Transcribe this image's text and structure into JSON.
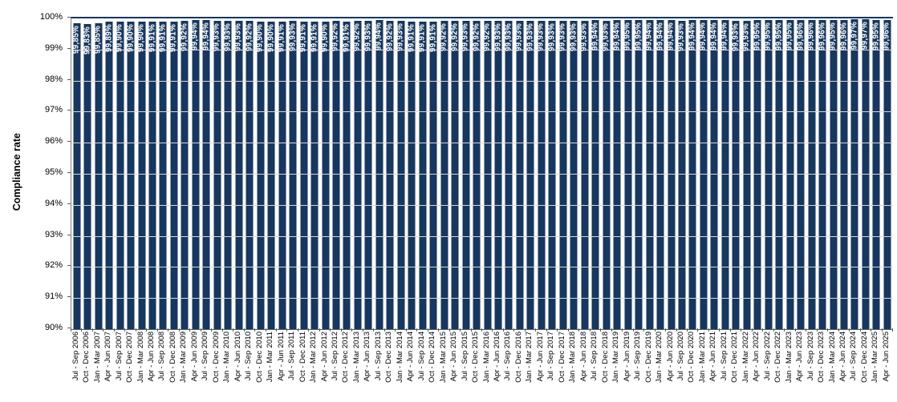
{
  "chart_data": {
    "type": "bar",
    "title": "",
    "xlabel": "",
    "ylabel": "Compliance rate",
    "ylim": [
      90,
      100
    ],
    "ytick_step": 1,
    "ytick_labels": [
      "100%",
      "99%",
      "98%",
      "97%",
      "96%",
      "95%",
      "94%",
      "93%",
      "92%",
      "91%",
      "90%"
    ],
    "grid": true,
    "legend": "none",
    "bar_color": "#17375E",
    "value_label_color": "#FFFFFF",
    "gridline_color": "#D9D9D9",
    "axis_color": "#595959",
    "categories": [
      "Jul - Sep 2006",
      "Oct - Dec 2006",
      "Jan - Mar 2007",
      "Apr - Jun 2007",
      "Jul - Sep 2007",
      "Oct - Dec 2007",
      "Jan - Mar 2008",
      "Apr - Jun 2008",
      "Jul - Sep 2008",
      "Oct - Dec 2008",
      "Jan - Mar 2009",
      "Apr - Jun 2009",
      "Jul - Sep 2009",
      "Oct - Dec 2009",
      "Jan - Mar 2010",
      "Apr - Jun 2010",
      "Jul - Sep 2010",
      "Oct - Dec 2010",
      "Jan - Mar 2011",
      "Apr - Jun 2011",
      "Jul - Sep 2011",
      "Oct - Dec 2011",
      "Jan - Mar 2012",
      "Apr - Jun 2012",
      "Jul - Sep 2012",
      "Oct - Dec 2012",
      "Jan - Mar 2013",
      "Apr - Jun 2013",
      "Jul - Sep 2013",
      "Oct - Dec 2013",
      "Jan - Mar 2014",
      "Apr - Jun 2014",
      "Jul - Sep 2014",
      "Oct - Dec 2014",
      "Jan - Mar 2015",
      "Apr - Jun 2015",
      "Jul - Sep 2015",
      "Oct - Dec 2015",
      "Jan - Mar 2016",
      "Apr - Jun 2016",
      "Jul - Sep 2016",
      "Oct - Dec 2016",
      "Jan - Mar 2017",
      "Apr - Jun 2017",
      "Jul - Sep 2017",
      "Oct - Dec 2017",
      "Jan - Mar 2018",
      "Apr - Jun 2018",
      "Jul - Sep 2018",
      "Oct - Dec 2018",
      "Jan - Mar 2019",
      "Apr - Jun 2019",
      "Jul - Sep 2019",
      "Oct - Dec 2019",
      "Jan - Mar 2020",
      "Apr - Jun 2020",
      "Jul - Sep 2020",
      "Oct - Dec 2020",
      "Jan - Mar 2021",
      "Apr - Jun 2021",
      "Jul - Sep 2021",
      "Oct - Dec 2021",
      "Jan - Mar 2022",
      "Apr - Jun 2022",
      "Jul - Sep 2022",
      "Oct - Dec 2022",
      "Jan - Mar 2023",
      "Apr - Jun 2023",
      "Jul - Sep 2023",
      "Oct - Dec 2023",
      "Jan - Mar 2024",
      "Apr - Jun 2024",
      "Jul - Sep 2024",
      "Oct - Dec 2024",
      "Jan - Mar 2025",
      "Apr - Jun 2025"
    ],
    "values": [
      99.85,
      99.83,
      99.85,
      99.89,
      99.9,
      99.9,
      99.9,
      99.91,
      99.91,
      99.91,
      99.92,
      99.94,
      99.94,
      99.93,
      99.93,
      99.93,
      99.92,
      99.9,
      99.9,
      99.91,
      99.93,
      99.91,
      99.91,
      99.9,
      99.92,
      99.91,
      99.92,
      99.93,
      99.94,
      99.92,
      99.93,
      99.91,
      99.91,
      99.91,
      99.92,
      99.92,
      99.93,
      99.92,
      99.92,
      99.93,
      99.93,
      99.93,
      99.93,
      99.93,
      99.93,
      99.93,
      99.93,
      99.93,
      99.94,
      99.93,
      99.94,
      99.95,
      99.95,
      99.94,
      99.94,
      99.94,
      99.93,
      99.94,
      99.94,
      99.94,
      99.94,
      99.93,
      99.93,
      99.95,
      99.95,
      99.95,
      99.95,
      99.96,
      99.96,
      99.96,
      99.95,
      99.96,
      99.97,
      99.97,
      99.95,
      99.96
    ],
    "value_labels": [
      "99,85%",
      "99,83%",
      "99,85%",
      "99,89%",
      "99,90%",
      "99,90%",
      "99,90%",
      "99,91%",
      "99,91%",
      "99,91%",
      "99,92%",
      "99,94%",
      "99,94%",
      "99,93%",
      "99,93%",
      "99,93%",
      "99,92%",
      "99,90%",
      "99,90%",
      "99,91%",
      "99,93%",
      "99,91%",
      "99,91%",
      "99,90%",
      "99,92%",
      "99,91%",
      "99,92%",
      "99,93%",
      "99,94%",
      "99,92%",
      "99,93%",
      "99,91%",
      "99,91%",
      "99,91%",
      "99,92%",
      "99,92%",
      "99,93%",
      "99,92%",
      "99,92%",
      "99,93%",
      "99,93%",
      "99,93%",
      "99,93%",
      "99,93%",
      "99,93%",
      "99,93%",
      "99,93%",
      "99,93%",
      "99,94%",
      "99,93%",
      "99,94%",
      "99,95%",
      "99,95%",
      "99,94%",
      "99,94%",
      "99,94%",
      "99,93%",
      "99,94%",
      "99,94%",
      "99,94%",
      "99,94%",
      "99,93%",
      "99,93%",
      "99,95%",
      "99,95%",
      "99,95%",
      "99,95%",
      "99,96%",
      "99,96%",
      "99,96%",
      "99,95%",
      "99,96%",
      "99,97%",
      "99,97%",
      "99,95%",
      "99,96%"
    ]
  }
}
